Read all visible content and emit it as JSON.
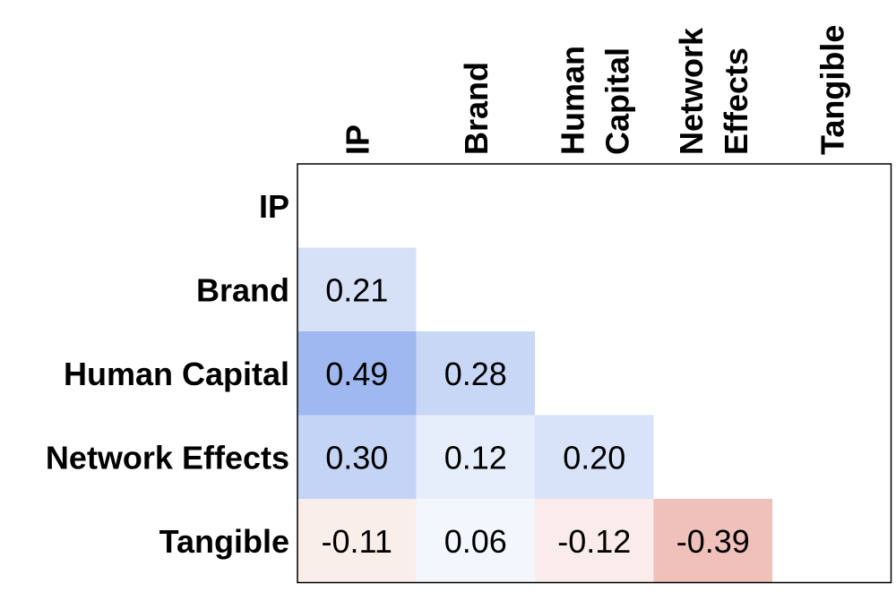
{
  "chart_data": {
    "type": "heatmap",
    "variant": "lower-triangle correlation matrix",
    "row_labels": [
      "IP",
      "Brand",
      "Human Capital",
      "Network Effects",
      "Tangible"
    ],
    "column_labels": [
      [
        "IP"
      ],
      [
        "Brand"
      ],
      [
        "Human",
        "Capital"
      ],
      [
        "Network",
        "Effects"
      ],
      [
        "Tangible"
      ]
    ],
    "values": [
      [
        null,
        null,
        null,
        null,
        null
      ],
      [
        0.21,
        null,
        null,
        null,
        null
      ],
      [
        0.49,
        0.28,
        null,
        null,
        null
      ],
      [
        0.3,
        0.12,
        0.2,
        null,
        null
      ],
      [
        -0.11,
        0.06,
        -0.12,
        -0.39,
        null
      ]
    ],
    "value_labels": [
      [
        null,
        null,
        null,
        null,
        null
      ],
      [
        "0.21",
        null,
        null,
        null,
        null
      ],
      [
        "0.49",
        "0.28",
        null,
        null,
        null
      ],
      [
        "0.30",
        "0.12",
        "0.20",
        null,
        null
      ],
      [
        "-0.11",
        "0.06",
        "-0.12",
        "-0.39",
        null
      ]
    ],
    "color_scale": {
      "min": -1,
      "max": 1,
      "negative": "#d6604d",
      "zero": "#ffffff",
      "positive": "#3b6fe0"
    },
    "grid": false
  }
}
